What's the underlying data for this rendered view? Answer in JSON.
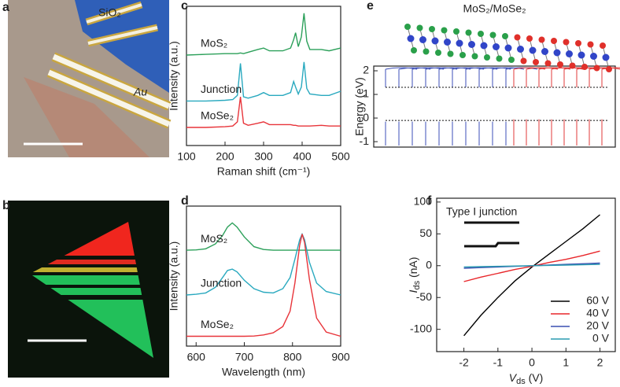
{
  "figure": {
    "a": {
      "label": "a",
      "texts": [
        "SiO₂",
        "Au"
      ]
    },
    "b": {
      "label": "b"
    }
  },
  "chart_data": [
    {
      "type": "line",
      "label": "c",
      "xlabel": "Raman shift (cm⁻¹)",
      "ylabel": "Intensity (a.u.)",
      "xlim": [
        100,
        500
      ],
      "xticks": [
        100,
        200,
        300,
        400,
        500
      ],
      "ylim": [
        0,
        10
      ],
      "x": [
        100,
        150,
        200,
        220,
        232,
        240,
        248,
        260,
        285,
        300,
        315,
        350,
        370,
        378,
        383,
        390,
        398,
        405,
        412,
        420,
        450,
        470,
        500
      ],
      "series": [
        {
          "name": "MoS₂",
          "color": "#2ca05a",
          "values": [
            6.5,
            6.55,
            6.6,
            6.6,
            6.6,
            6.65,
            6.6,
            6.7,
            6.9,
            7.0,
            6.8,
            6.8,
            7.0,
            7.6,
            8.1,
            7.1,
            7.8,
            9.5,
            7.5,
            6.9,
            6.9,
            6.8,
            7.0
          ]
        },
        {
          "name": "Junction",
          "color": "#29a9bf",
          "values": [
            3.2,
            3.2,
            3.25,
            3.3,
            3.6,
            5.9,
            3.5,
            3.4,
            3.6,
            3.8,
            3.6,
            3.6,
            3.8,
            4.6,
            4.2,
            3.7,
            4.2,
            6.0,
            4.1,
            3.7,
            3.6,
            3.6,
            3.9
          ]
        },
        {
          "name": "MoSe₂",
          "color": "#e8343a",
          "values": [
            1.3,
            1.3,
            1.35,
            1.4,
            1.7,
            3.5,
            1.6,
            1.45,
            1.6,
            1.7,
            1.5,
            1.5,
            1.5,
            1.45,
            1.45,
            1.4,
            1.4,
            1.4,
            1.4,
            1.4,
            1.45,
            1.4,
            1.4
          ]
        }
      ]
    },
    {
      "type": "line",
      "label": "d",
      "xlabel": "Wavelength (nm)",
      "ylabel": "Intensity (a.u.)",
      "xlim": [
        580,
        900
      ],
      "xticks": [
        600,
        700,
        800,
        900
      ],
      "ylim": [
        0,
        10
      ],
      "x": [
        580,
        600,
        620,
        640,
        655,
        665,
        675,
        685,
        700,
        720,
        740,
        760,
        780,
        795,
        805,
        815,
        820,
        825,
        835,
        850,
        870,
        900
      ],
      "series": [
        {
          "name": "MoS₂",
          "color": "#2ca05a",
          "values": [
            6.85,
            6.87,
            6.95,
            7.3,
            7.9,
            8.5,
            8.8,
            8.5,
            7.8,
            7.1,
            6.9,
            6.85,
            6.85,
            6.85,
            6.85,
            6.85,
            6.85,
            6.85,
            6.85,
            6.85,
            6.85,
            6.85
          ]
        },
        {
          "name": "Junction",
          "color": "#29a9bf",
          "values": [
            3.65,
            3.7,
            3.8,
            4.2,
            4.9,
            5.4,
            5.5,
            5.3,
            4.7,
            4.1,
            3.85,
            3.8,
            4.1,
            4.9,
            6.2,
            7.6,
            8.0,
            7.6,
            6.0,
            4.5,
            3.9,
            3.65
          ]
        },
        {
          "name": "MoSe₂",
          "color": "#e8343a",
          "values": [
            0.7,
            0.7,
            0.7,
            0.7,
            0.7,
            0.7,
            0.7,
            0.7,
            0.7,
            0.72,
            0.8,
            0.95,
            1.4,
            2.5,
            4.5,
            7.2,
            8.0,
            7.4,
            4.8,
            2.0,
            1.0,
            0.7
          ]
        }
      ]
    },
    {
      "type": "line",
      "label": "e",
      "title": "MoS₂/MoSe₂",
      "ylabel": "Energy (eV)",
      "ylim": [
        -1.23,
        2.2
      ],
      "yticks": [
        -1,
        0,
        1,
        2
      ]
    },
    {
      "type": "line",
      "label": "f",
      "annotation": "Type I junction",
      "xlabel": {
        "symbol": "V",
        "subscript": "ds",
        "unit": " (V)"
      },
      "ylabel": {
        "symbol": "I",
        "subscript": "ds",
        "unit": " (nA)"
      },
      "xlim": [
        -2.8,
        2.45
      ],
      "xticks": [
        -2,
        -1,
        0,
        1,
        2
      ],
      "ylim": [
        -135,
        106
      ],
      "yticks": [
        -100,
        -50,
        0,
        50,
        100
      ],
      "legend": "lower right",
      "x": [
        -2,
        -1.5,
        -1,
        -0.5,
        0,
        0.5,
        1,
        1.5,
        2
      ],
      "series": [
        {
          "name": "60 V",
          "color": "#000000",
          "values": [
            -110,
            -78,
            -50,
            -24,
            -2,
            18,
            38,
            58,
            80
          ]
        },
        {
          "name": "40 V",
          "color": "#e8262a",
          "values": [
            -25,
            -18,
            -12,
            -6,
            -1,
            5,
            10,
            16,
            23
          ]
        },
        {
          "name": "20 V",
          "color": "#3a4fb0",
          "values": [
            -4,
            -3,
            -2,
            -1,
            0,
            1,
            2,
            3,
            4
          ]
        },
        {
          "name": "0 V",
          "color": "#2a9bb0",
          "values": [
            -2,
            -1.5,
            -1,
            -0.5,
            0,
            0.5,
            1,
            1.5,
            2
          ]
        }
      ]
    }
  ]
}
